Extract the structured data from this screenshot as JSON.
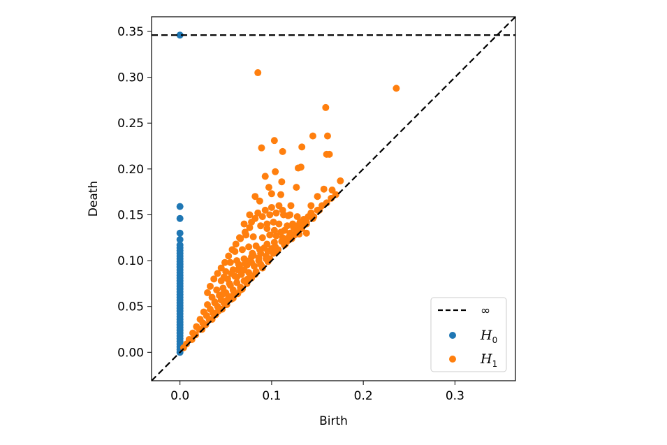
{
  "chart_data": {
    "type": "scatter",
    "title": "",
    "xlabel": "Birth",
    "ylabel": "Death",
    "xlim": [
      -0.031,
      0.366
    ],
    "ylim": [
      -0.031,
      0.366
    ],
    "x_ticks": [
      {
        "value": 0.0,
        "label": "0.0"
      },
      {
        "value": 0.1,
        "label": "0.1"
      },
      {
        "value": 0.2,
        "label": "0.2"
      },
      {
        "value": 0.3,
        "label": "0.3"
      }
    ],
    "y_ticks": [
      {
        "value": 0.0,
        "label": "0.00"
      },
      {
        "value": 0.05,
        "label": "0.05"
      },
      {
        "value": 0.1,
        "label": "0.10"
      },
      {
        "value": 0.15,
        "label": "0.15"
      },
      {
        "value": 0.2,
        "label": "0.20"
      },
      {
        "value": 0.25,
        "label": "0.25"
      },
      {
        "value": 0.3,
        "label": "0.30"
      },
      {
        "value": 0.35,
        "label": "0.35"
      }
    ],
    "infinity_line": {
      "y": 0.346,
      "label": "∞",
      "style": "dashed",
      "color": "#000000"
    },
    "diagonal": {
      "style": "dashed",
      "color": "#000000"
    },
    "legend": {
      "placement": "bottom-right",
      "entries": [
        {
          "kind": "line",
          "label": "∞"
        },
        {
          "kind": "marker",
          "main": "H",
          "sub": "0",
          "color": "#1f77b4"
        },
        {
          "kind": "marker",
          "main": "H",
          "sub": "1",
          "color": "#ff7f0e"
        }
      ]
    },
    "series": [
      {
        "name": "H0",
        "color": "#1f77b4",
        "points": [
          [
            0,
            0.0
          ],
          [
            0,
            0.003
          ],
          [
            0,
            0.006
          ],
          [
            0,
            0.009
          ],
          [
            0,
            0.012
          ],
          [
            0,
            0.015
          ],
          [
            0,
            0.018
          ],
          [
            0,
            0.021
          ],
          [
            0,
            0.024
          ],
          [
            0,
            0.027
          ],
          [
            0,
            0.03
          ],
          [
            0,
            0.033
          ],
          [
            0,
            0.036
          ],
          [
            0,
            0.039
          ],
          [
            0,
            0.042
          ],
          [
            0,
            0.045
          ],
          [
            0,
            0.048
          ],
          [
            0,
            0.051
          ],
          [
            0,
            0.054
          ],
          [
            0,
            0.057
          ],
          [
            0,
            0.06
          ],
          [
            0,
            0.063
          ],
          [
            0,
            0.066
          ],
          [
            0,
            0.069
          ],
          [
            0,
            0.072
          ],
          [
            0,
            0.075
          ],
          [
            0,
            0.078
          ],
          [
            0,
            0.081
          ],
          [
            0,
            0.084
          ],
          [
            0,
            0.087
          ],
          [
            0,
            0.09
          ],
          [
            0,
            0.093
          ],
          [
            0,
            0.096
          ],
          [
            0,
            0.099
          ],
          [
            0,
            0.102
          ],
          [
            0,
            0.105
          ],
          [
            0,
            0.108
          ],
          [
            0,
            0.111
          ],
          [
            0,
            0.114
          ],
          [
            0,
            0.117
          ],
          [
            0,
            0.123
          ],
          [
            0,
            0.13
          ],
          [
            0,
            0.146
          ],
          [
            0,
            0.159
          ],
          [
            0,
            0.346
          ]
        ]
      },
      {
        "name": "H1",
        "color": "#ff7f0e",
        "points": [
          [
            0.085,
            0.305
          ],
          [
            0.236,
            0.288
          ],
          [
            0.159,
            0.267
          ],
          [
            0.161,
            0.236
          ],
          [
            0.145,
            0.236
          ],
          [
            0.103,
            0.231
          ],
          [
            0.089,
            0.223
          ],
          [
            0.133,
            0.224
          ],
          [
            0.112,
            0.219
          ],
          [
            0.16,
            0.216
          ],
          [
            0.163,
            0.216
          ],
          [
            0.129,
            0.201
          ],
          [
            0.132,
            0.202
          ],
          [
            0.104,
            0.197
          ],
          [
            0.093,
            0.192
          ],
          [
            0.111,
            0.186
          ],
          [
            0.127,
            0.18
          ],
          [
            0.097,
            0.18
          ],
          [
            0.157,
            0.178
          ],
          [
            0.166,
            0.177
          ],
          [
            0.175,
            0.187
          ],
          [
            0.1,
            0.173
          ],
          [
            0.11,
            0.172
          ],
          [
            0.121,
            0.16
          ],
          [
            0.15,
            0.17
          ],
          [
            0.143,
            0.16
          ],
          [
            0.082,
            0.17
          ],
          [
            0.087,
            0.165
          ],
          [
            0.076,
            0.15
          ],
          [
            0.085,
            0.152
          ],
          [
            0.093,
            0.155
          ],
          [
            0.1,
            0.158
          ],
          [
            0.108,
            0.16
          ],
          [
            0.113,
            0.15
          ],
          [
            0.118,
            0.149
          ],
          [
            0.123,
            0.14
          ],
          [
            0.128,
            0.138
          ],
          [
            0.133,
            0.135
          ],
          [
            0.138,
            0.13
          ],
          [
            0.143,
            0.152
          ],
          [
            0.07,
            0.14
          ],
          [
            0.078,
            0.142
          ],
          [
            0.088,
            0.138
          ],
          [
            0.095,
            0.14
          ],
          [
            0.102,
            0.142
          ],
          [
            0.108,
            0.14
          ],
          [
            0.114,
            0.133
          ],
          [
            0.12,
            0.13
          ],
          [
            0.125,
            0.128
          ],
          [
            0.13,
            0.129
          ],
          [
            0.065,
            0.125
          ],
          [
            0.072,
            0.128
          ],
          [
            0.08,
            0.126
          ],
          [
            0.09,
            0.125
          ],
          [
            0.098,
            0.128
          ],
          [
            0.105,
            0.127
          ],
          [
            0.112,
            0.125
          ],
          [
            0.118,
            0.122
          ],
          [
            0.06,
            0.11
          ],
          [
            0.068,
            0.112
          ],
          [
            0.075,
            0.115
          ],
          [
            0.083,
            0.116
          ],
          [
            0.092,
            0.114
          ],
          [
            0.1,
            0.113
          ],
          [
            0.107,
            0.112
          ],
          [
            0.115,
            0.118
          ],
          [
            0.055,
            0.098
          ],
          [
            0.062,
            0.1
          ],
          [
            0.07,
            0.102
          ],
          [
            0.078,
            0.104
          ],
          [
            0.086,
            0.103
          ],
          [
            0.094,
            0.105
          ],
          [
            0.102,
            0.108
          ],
          [
            0.05,
            0.088
          ],
          [
            0.058,
            0.09
          ],
          [
            0.065,
            0.093
          ],
          [
            0.073,
            0.095
          ],
          [
            0.081,
            0.094
          ],
          [
            0.088,
            0.096
          ],
          [
            0.096,
            0.099
          ],
          [
            0.045,
            0.078
          ],
          [
            0.052,
            0.08
          ],
          [
            0.06,
            0.083
          ],
          [
            0.067,
            0.085
          ],
          [
            0.075,
            0.087
          ],
          [
            0.083,
            0.088
          ],
          [
            0.09,
            0.092
          ],
          [
            0.04,
            0.068
          ],
          [
            0.047,
            0.07
          ],
          [
            0.055,
            0.073
          ],
          [
            0.062,
            0.076
          ],
          [
            0.07,
            0.078
          ],
          [
            0.078,
            0.081
          ],
          [
            0.035,
            0.06
          ],
          [
            0.043,
            0.062
          ],
          [
            0.05,
            0.065
          ],
          [
            0.058,
            0.068
          ],
          [
            0.066,
            0.071
          ],
          [
            0.073,
            0.075
          ],
          [
            0.03,
            0.052
          ],
          [
            0.038,
            0.054
          ],
          [
            0.045,
            0.057
          ],
          [
            0.053,
            0.061
          ],
          [
            0.061,
            0.064
          ],
          [
            0.068,
            0.069
          ],
          [
            0.026,
            0.044
          ],
          [
            0.033,
            0.047
          ],
          [
            0.041,
            0.05
          ],
          [
            0.048,
            0.054
          ],
          [
            0.056,
            0.058
          ],
          [
            0.063,
            0.064
          ],
          [
            0.022,
            0.036
          ],
          [
            0.029,
            0.04
          ],
          [
            0.036,
            0.043
          ],
          [
            0.044,
            0.047
          ],
          [
            0.051,
            0.052
          ],
          [
            0.058,
            0.059
          ],
          [
            0.018,
            0.028
          ],
          [
            0.025,
            0.032
          ],
          [
            0.032,
            0.036
          ],
          [
            0.039,
            0.041
          ],
          [
            0.046,
            0.047
          ],
          [
            0.014,
            0.021
          ],
          [
            0.021,
            0.025
          ],
          [
            0.028,
            0.03
          ],
          [
            0.035,
            0.036
          ],
          [
            0.01,
            0.014
          ],
          [
            0.017,
            0.019
          ],
          [
            0.024,
            0.025
          ],
          [
            0.007,
            0.009
          ],
          [
            0.013,
            0.014
          ],
          [
            0.004,
            0.005
          ],
          [
            0.03,
            0.065
          ],
          [
            0.033,
            0.072
          ],
          [
            0.037,
            0.08
          ],
          [
            0.041,
            0.086
          ],
          [
            0.045,
            0.092
          ],
          [
            0.049,
            0.098
          ],
          [
            0.053,
            0.105
          ],
          [
            0.057,
            0.112
          ],
          [
            0.061,
            0.118
          ],
          [
            0.066,
            0.124
          ],
          [
            0.071,
            0.131
          ],
          [
            0.076,
            0.136
          ],
          [
            0.082,
            0.146
          ],
          [
            0.09,
            0.148
          ],
          [
            0.098,
            0.15
          ],
          [
            0.105,
            0.152
          ],
          [
            0.112,
            0.155
          ],
          [
            0.12,
            0.15
          ],
          [
            0.128,
            0.148
          ],
          [
            0.135,
            0.145
          ],
          [
            0.14,
            0.148
          ],
          [
            0.145,
            0.146
          ],
          [
            0.15,
            0.155
          ],
          [
            0.155,
            0.16
          ],
          [
            0.16,
            0.163
          ],
          [
            0.165,
            0.168
          ],
          [
            0.17,
            0.172
          ],
          [
            0.095,
            0.135
          ],
          [
            0.103,
            0.133
          ],
          [
            0.11,
            0.131
          ],
          [
            0.117,
            0.138
          ],
          [
            0.124,
            0.136
          ],
          [
            0.131,
            0.142
          ],
          [
            0.138,
            0.142
          ],
          [
            0.063,
            0.09
          ],
          [
            0.071,
            0.097
          ],
          [
            0.079,
            0.108
          ],
          [
            0.087,
            0.112
          ],
          [
            0.095,
            0.118
          ],
          [
            0.103,
            0.12
          ],
          [
            0.111,
            0.121
          ],
          [
            0.119,
            0.126
          ],
          [
            0.127,
            0.131
          ],
          [
            0.135,
            0.139
          ],
          [
            0.048,
            0.082
          ],
          [
            0.056,
            0.086
          ],
          [
            0.064,
            0.096
          ],
          [
            0.072,
            0.1
          ],
          [
            0.08,
            0.106
          ],
          [
            0.088,
            0.108
          ],
          [
            0.096,
            0.11
          ],
          [
            0.104,
            0.115
          ],
          [
            0.038,
            0.055
          ],
          [
            0.046,
            0.063
          ],
          [
            0.054,
            0.075
          ],
          [
            0.062,
            0.082
          ],
          [
            0.07,
            0.09
          ],
          [
            0.078,
            0.098
          ],
          [
            0.086,
            0.1
          ],
          [
            0.094,
            0.102
          ],
          [
            0.042,
            0.045
          ],
          [
            0.05,
            0.056
          ],
          [
            0.058,
            0.062
          ],
          [
            0.066,
            0.068
          ],
          [
            0.074,
            0.08
          ],
          [
            0.082,
            0.085
          ],
          [
            0.09,
            0.093
          ],
          [
            0.098,
            0.102
          ],
          [
            0.106,
            0.11
          ],
          [
            0.114,
            0.117
          ],
          [
            0.122,
            0.124
          ],
          [
            0.13,
            0.133
          ],
          [
            0.138,
            0.14
          ],
          [
            0.146,
            0.148
          ],
          [
            0.152,
            0.155
          ]
        ]
      }
    ]
  }
}
